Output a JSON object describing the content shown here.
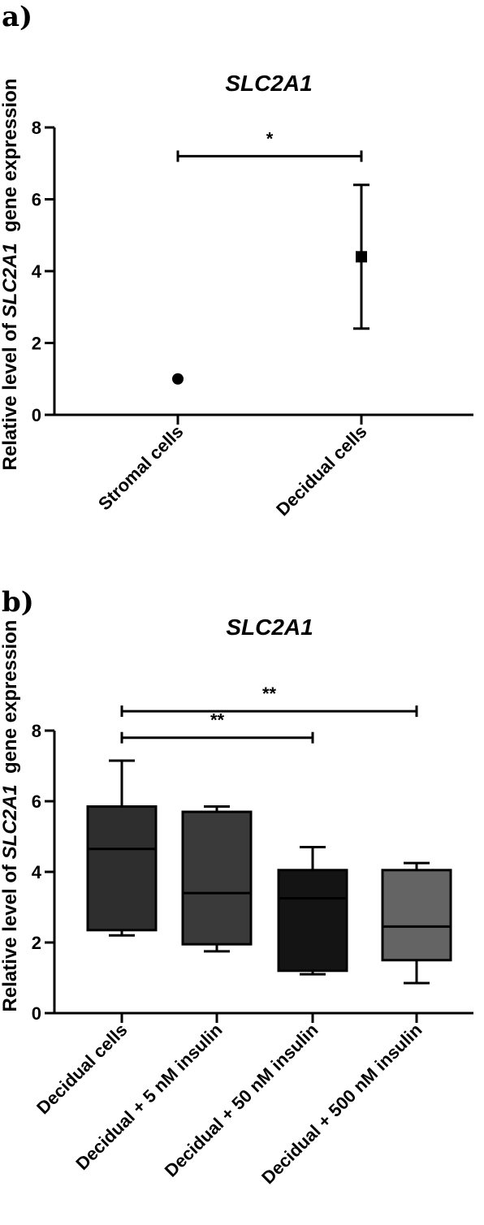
{
  "chart_data": [
    {
      "panel": "a)",
      "type": "scatter",
      "title": "SLC2A1",
      "ylabel_prefix": "Relative level of ",
      "ylabel_gene": "SLC2A1",
      "ylabel_suffix": "  gene expression",
      "ylim": [
        0,
        8
      ],
      "yticks": [
        "0",
        "2",
        "4",
        "6",
        "8"
      ],
      "categories": [
        "Stromal cells",
        "Decidual cells"
      ],
      "points": [
        {
          "category": "Stromal cells",
          "value": 1.0,
          "marker": "circle"
        },
        {
          "category": "Decidual cells",
          "value": 4.4,
          "error_low": 2.4,
          "error_high": 6.4,
          "marker": "square"
        }
      ],
      "significance": [
        {
          "from": 0,
          "to": 1,
          "y": 7.2,
          "label": "*"
        }
      ],
      "grid": false,
      "legend": "none"
    },
    {
      "panel": "b)",
      "type": "box",
      "title": "SLC2A1",
      "ylabel_prefix": "Relative level of ",
      "ylabel_gene": "SLC2A1",
      "ylabel_suffix": "  gene expression",
      "ylim": [
        0,
        8
      ],
      "yticks": [
        "0",
        "2",
        "4",
        "6",
        "8"
      ],
      "categories": [
        "Decidual cells",
        "Decidual + 5 nM insulin",
        "Decidual + 50 nM insulin",
        "Decidual + 500 nM insulin"
      ],
      "boxes": [
        {
          "min": 2.2,
          "q1": 2.35,
          "median": 4.65,
          "q3": 5.85,
          "max": 7.15,
          "color": "#2e2e2e"
        },
        {
          "min": 1.75,
          "q1": 1.95,
          "median": 3.4,
          "q3": 5.7,
          "max": 5.85,
          "color": "#3a3a3a"
        },
        {
          "min": 1.1,
          "q1": 1.2,
          "median": 3.25,
          "q3": 4.05,
          "max": 4.7,
          "color": "#141414"
        },
        {
          "min": 0.85,
          "q1": 1.5,
          "median": 2.45,
          "q3": 4.05,
          "max": 4.25,
          "color": "#646464"
        }
      ],
      "significance": [
        {
          "from": 0,
          "to": 2,
          "y": 7.8,
          "label": "**"
        },
        {
          "from": 0,
          "to": 3,
          "y": 8.55,
          "label": "**"
        }
      ],
      "grid": false,
      "legend": "none"
    }
  ]
}
